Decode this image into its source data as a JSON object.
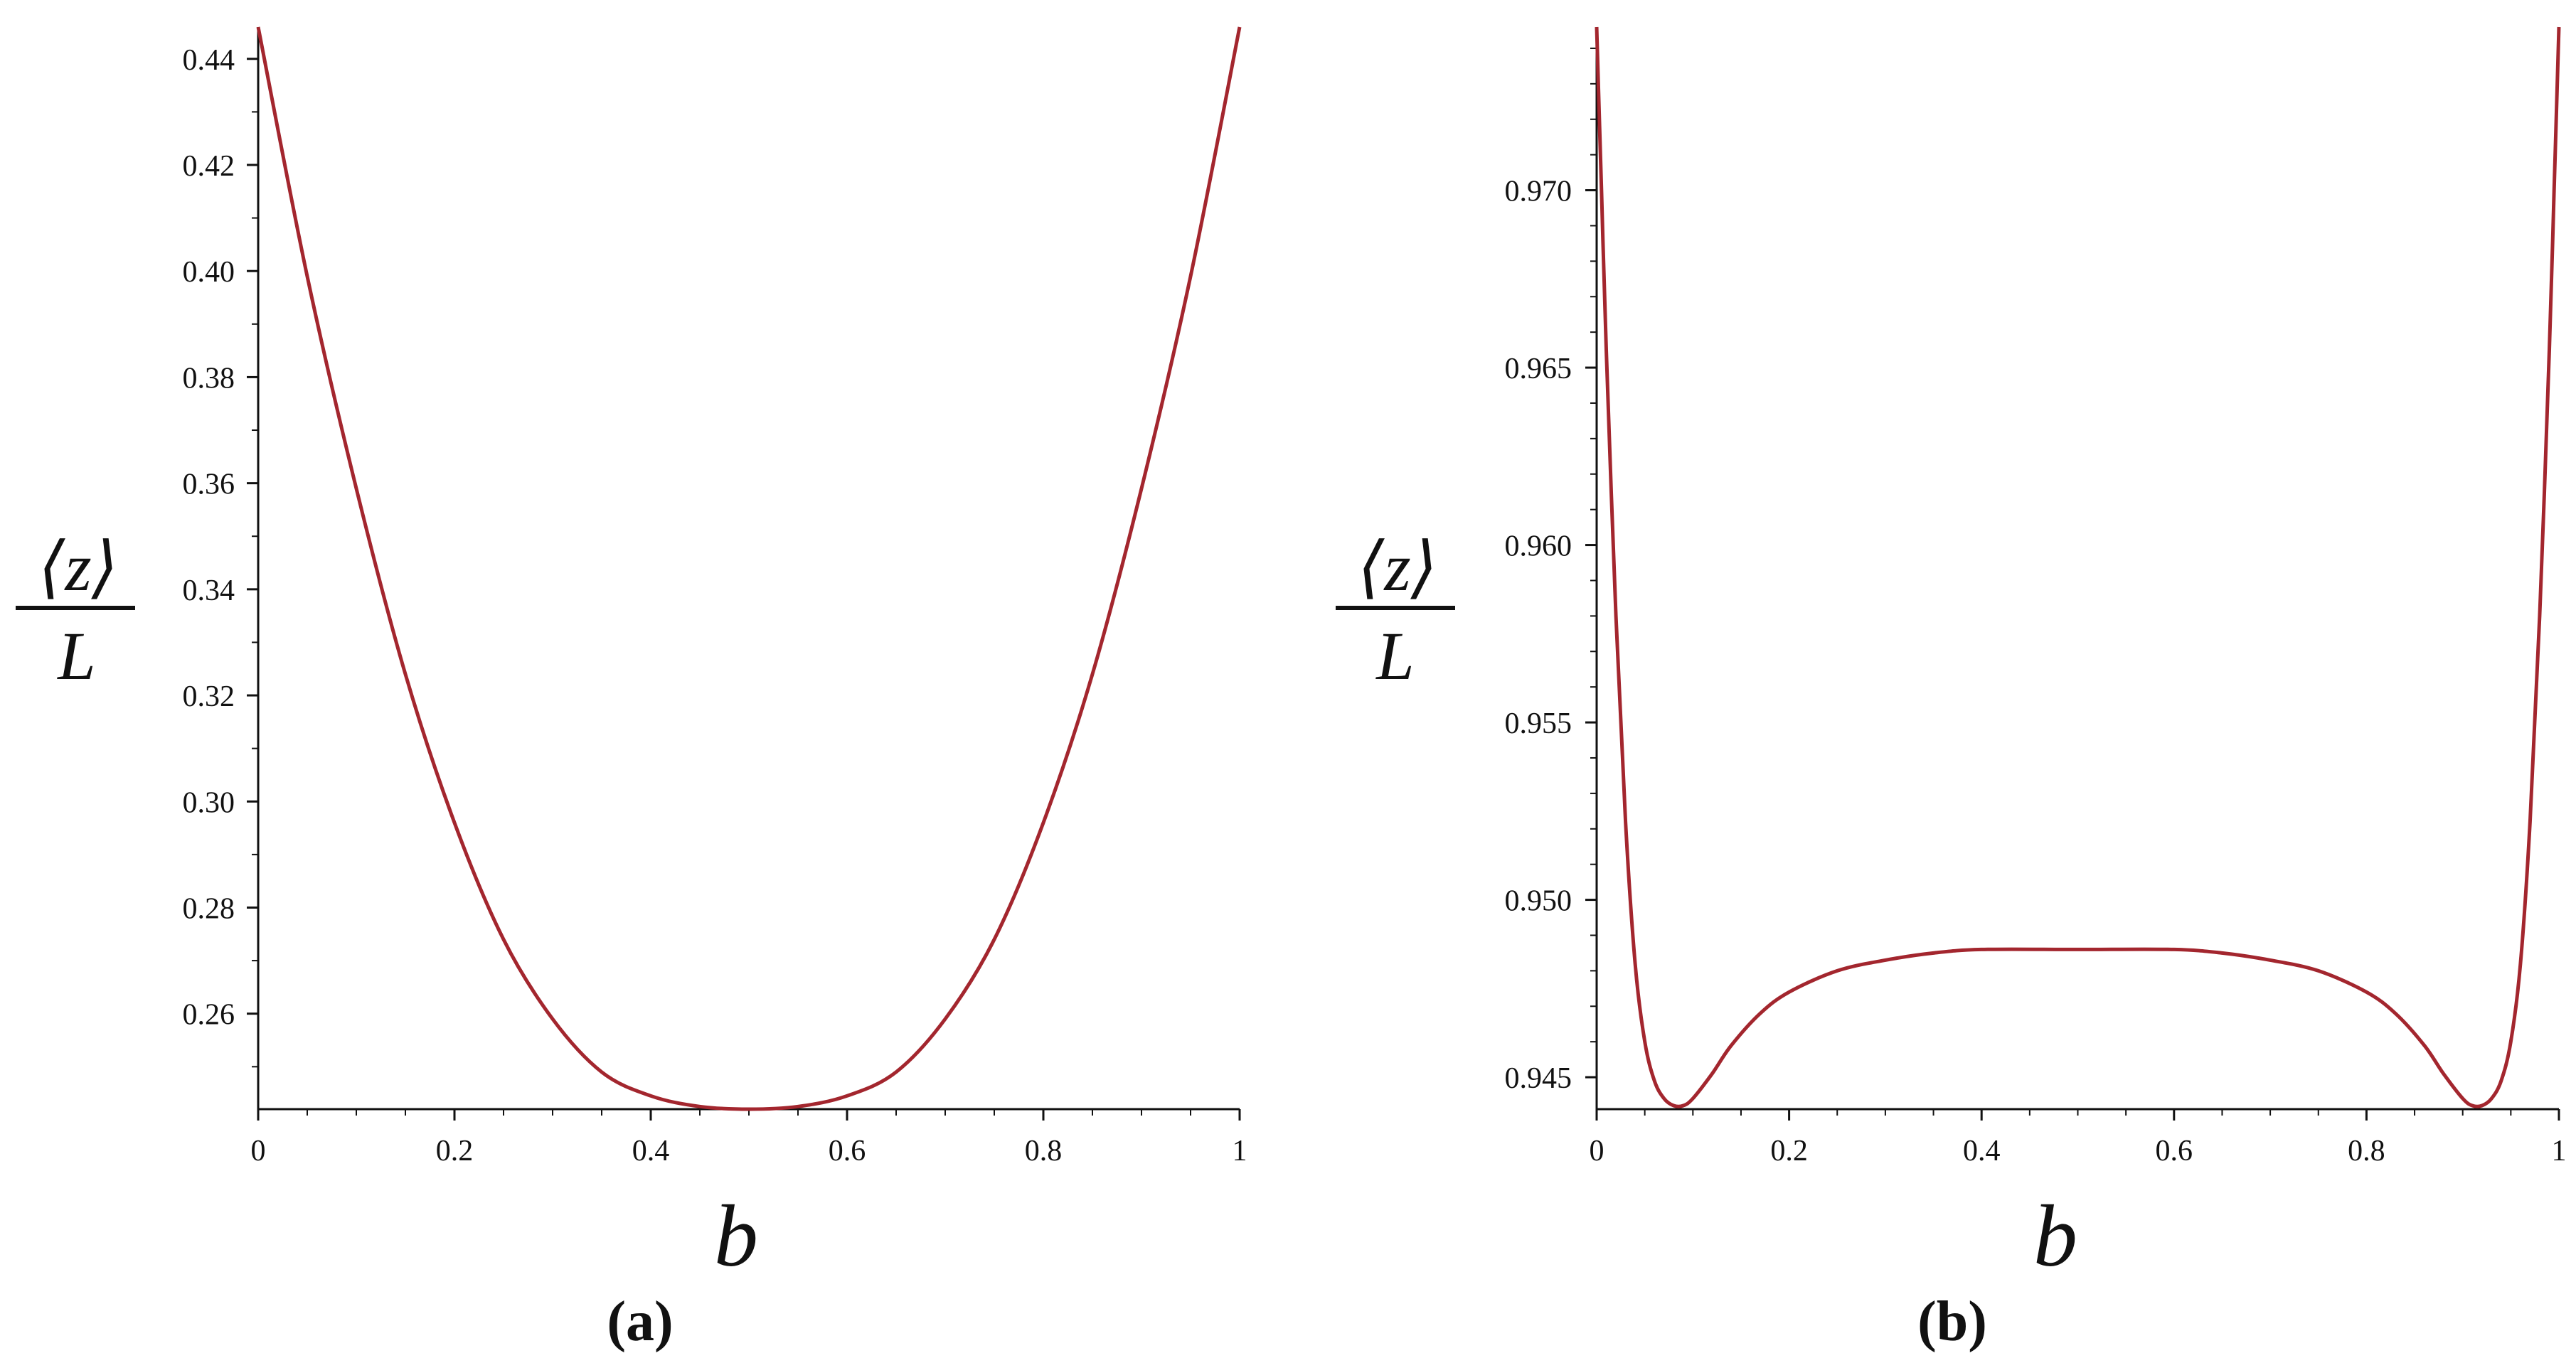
{
  "chart_data": [
    {
      "type": "line",
      "panel_label": "(a)",
      "xlabel": "b",
      "ylabel_numerator": "⟨z⟩",
      "ylabel_denominator": "L",
      "xlim": [
        0,
        1
      ],
      "ylim": [
        0.242,
        0.446
      ],
      "xticks": [
        0,
        0.2,
        0.4,
        0.6,
        0.8,
        1
      ],
      "xtick_labels": [
        "0",
        "0.2",
        "0.4",
        "0.6",
        "0.8",
        "1"
      ],
      "yticks": [
        0.26,
        0.28,
        0.3,
        0.32,
        0.34,
        0.36,
        0.38,
        0.4,
        0.42,
        0.44
      ],
      "ytick_labels": [
        "0.26",
        "0.28",
        "0.30",
        "0.32",
        "0.34",
        "0.36",
        "0.38",
        "0.40",
        "0.42",
        "0.44"
      ],
      "grid": false,
      "line_color": "#a3262e",
      "x": [
        0,
        0.05,
        0.1,
        0.15,
        0.2,
        0.25,
        0.3,
        0.35,
        0.4,
        0.45,
        0.5,
        0.55,
        0.6,
        0.65,
        0.7,
        0.75,
        0.8,
        0.85,
        0.9,
        0.95,
        1
      ],
      "y": [
        0.446,
        0.399,
        0.359,
        0.324,
        0.296,
        0.274,
        0.259,
        0.249,
        0.2445,
        0.2425,
        0.242,
        0.2425,
        0.2445,
        0.249,
        0.259,
        0.274,
        0.296,
        0.324,
        0.359,
        0.399,
        0.446
      ]
    },
    {
      "type": "line",
      "panel_label": "(b)",
      "xlabel": "b",
      "ylabel_numerator": "⟨z⟩",
      "ylabel_denominator": "L",
      "xlim": [
        0,
        1
      ],
      "ylim": [
        0.9441,
        0.9746
      ],
      "xticks": [
        0,
        0.2,
        0.4,
        0.6,
        0.8,
        1
      ],
      "xtick_labels": [
        "0",
        "0.2",
        "0.4",
        "0.6",
        "0.8",
        "1"
      ],
      "yticks": [
        0.945,
        0.95,
        0.955,
        0.96,
        0.965,
        0.97
      ],
      "ytick_labels": [
        "0.945",
        "0.950",
        "0.955",
        "0.960",
        "0.965",
        "0.970"
      ],
      "grid": false,
      "line_color": "#a3262e",
      "x": [
        0,
        0.005,
        0.01,
        0.02,
        0.03,
        0.04,
        0.05,
        0.06,
        0.07,
        0.08,
        0.09,
        0.1,
        0.12,
        0.14,
        0.17,
        0.2,
        0.25,
        0.3,
        0.35,
        0.4,
        0.5,
        0.6,
        0.65,
        0.7,
        0.75,
        0.8,
        0.83,
        0.86,
        0.88,
        0.9,
        0.91,
        0.92,
        0.93,
        0.94,
        0.95,
        0.96,
        0.97,
        0.98,
        0.99,
        0.995,
        1
      ],
      "y": [
        0.9746,
        0.97,
        0.9655,
        0.958,
        0.9522,
        0.9482,
        0.946,
        0.9449,
        0.9444,
        0.9442,
        0.9442,
        0.9444,
        0.9451,
        0.9459,
        0.9468,
        0.9474,
        0.948,
        0.9483,
        0.9485,
        0.9486,
        0.9486,
        0.9486,
        0.9485,
        0.9483,
        0.948,
        0.9474,
        0.9468,
        0.9459,
        0.9451,
        0.9444,
        0.9442,
        0.9442,
        0.9444,
        0.9449,
        0.946,
        0.9482,
        0.9522,
        0.958,
        0.9655,
        0.97,
        0.9746
      ]
    }
  ]
}
